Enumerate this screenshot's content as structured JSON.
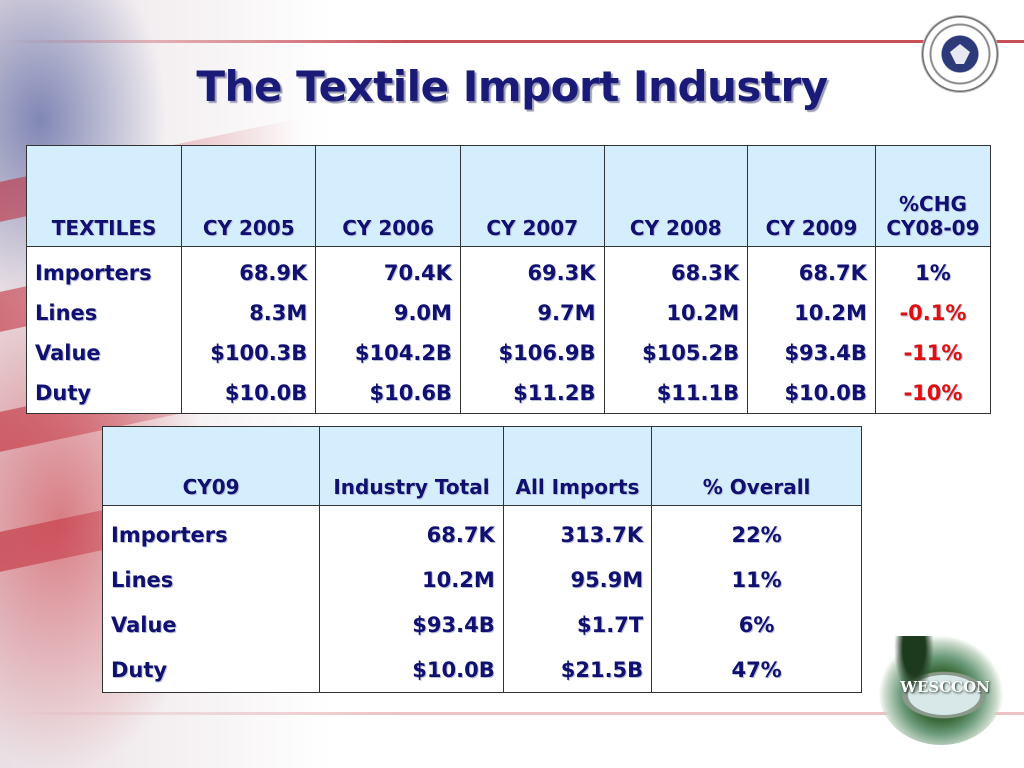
{
  "title": "The Textile Import Industry",
  "colors": {
    "title": "#1a1a78",
    "header_bg": "#d5eefd",
    "text": "#101070",
    "negative": "#e01010"
  },
  "icons": {
    "seal": "dhs-seal-icon",
    "conference_logo": "wesccon-logo-icon"
  },
  "logo": {
    "text": "WESCCON"
  },
  "table1": {
    "headers": [
      "TEXTILES",
      "CY 2005",
      "CY 2006",
      "CY 2007",
      "CY 2008",
      "CY 2009",
      "%CHG CY08-09"
    ],
    "rows": [
      {
        "label": "Importers",
        "values": [
          "68.9K",
          "70.4K",
          "69.3K",
          "68.3K",
          "68.7K"
        ],
        "change": "1%",
        "negative": false
      },
      {
        "label": "Lines",
        "values": [
          "8.3M",
          "9.0M",
          "9.7M",
          "10.2M",
          "10.2M"
        ],
        "change": "-0.1%",
        "negative": true
      },
      {
        "label": "Value",
        "values": [
          "$100.3B",
          "$104.2B",
          "$106.9B",
          "$105.2B",
          "$93.4B"
        ],
        "change": "-11%",
        "negative": true
      },
      {
        "label": "Duty",
        "values": [
          "$10.0B",
          "$10.6B",
          "$11.2B",
          "$11.1B",
          "$10.0B"
        ],
        "change": "-10%",
        "negative": true
      }
    ]
  },
  "table2": {
    "headers": [
      "CY09",
      "Industry Total",
      "All Imports",
      "% Overall"
    ],
    "rows": [
      {
        "label": "Importers",
        "industry_total": "68.7K",
        "all_imports": "313.7K",
        "overall": "22%"
      },
      {
        "label": "Lines",
        "industry_total": "10.2M",
        "all_imports": "95.9M",
        "overall": "11%"
      },
      {
        "label": "Value",
        "industry_total": "$93.4B",
        "all_imports": "$1.7T",
        "overall": "6%"
      },
      {
        "label": "Duty",
        "industry_total": "$10.0B",
        "all_imports": "$21.5B",
        "overall": "47%"
      }
    ]
  }
}
